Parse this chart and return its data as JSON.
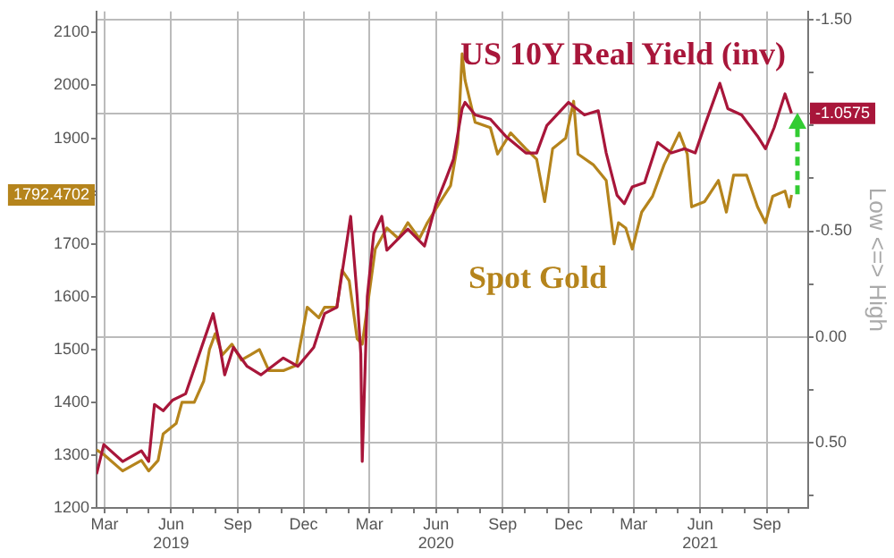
{
  "chart_data": {
    "type": "line",
    "series": [
      {
        "name": "US 10Y Real Yield (inv)",
        "color": "#a8163a",
        "axis": "y2",
        "x": [
          "2019-02-18",
          "2019-02-28",
          "2019-03-26",
          "2019-04-21",
          "2019-05-01",
          "2019-05-09",
          "2019-05-21",
          "2019-06-03",
          "2019-06-21",
          "2019-07-16",
          "2019-07-29",
          "2019-08-06",
          "2019-08-14",
          "2019-08-26",
          "2019-09-14",
          "2019-10-03",
          "2019-11-03",
          "2019-11-23",
          "2019-12-15",
          "2019-12-30",
          "2020-01-16",
          "2020-02-04",
          "2020-02-13",
          "2020-02-18",
          "2020-02-20",
          "2020-02-27",
          "2020-03-07",
          "2020-03-18",
          "2020-03-25",
          "2020-04-23",
          "2020-05-16",
          "2020-06-01",
          "2020-06-15",
          "2020-06-25",
          "2020-07-07",
          "2020-07-11",
          "2020-07-25",
          "2020-08-15",
          "2020-09-05",
          "2020-10-03",
          "2020-10-18",
          "2020-11-01",
          "2020-12-01",
          "2020-12-23",
          "2021-01-11",
          "2021-01-22",
          "2021-02-06",
          "2021-02-16",
          "2021-02-27",
          "2021-03-16",
          "2021-04-03",
          "2021-04-22",
          "2021-05-10",
          "2021-05-25",
          "2021-06-07",
          "2021-06-28",
          "2021-07-09",
          "2021-07-28",
          "2021-08-19",
          "2021-08-30",
          "2021-09-11",
          "2021-09-26",
          "2021-10-05"
        ],
        "values": [
          0.65,
          0.51,
          0.59,
          0.54,
          0.59,
          0.32,
          0.35,
          0.3,
          0.27,
          0.02,
          -0.11,
          0.02,
          0.18,
          0.05,
          0.14,
          0.18,
          0.1,
          0.14,
          0.05,
          -0.11,
          -0.14,
          -0.57,
          -0.19,
          0.08,
          0.59,
          -0.19,
          -0.49,
          -0.57,
          -0.41,
          -0.51,
          -0.43,
          -0.63,
          -0.75,
          -0.84,
          -1.08,
          -1.11,
          -1.05,
          -1.03,
          -0.95,
          -0.87,
          -0.87,
          -1.0,
          -1.11,
          -1.05,
          -1.07,
          -0.87,
          -0.67,
          -0.63,
          -0.71,
          -0.73,
          -0.92,
          -0.87,
          -0.89,
          -0.87,
          -1.0,
          -1.2,
          -1.08,
          -1.05,
          -0.95,
          -0.89,
          -0.99,
          -1.15,
          -1.0575
        ],
        "value_labels": [
          null,
          null,
          null,
          null,
          null,
          null,
          null,
          null,
          null,
          null,
          null,
          null,
          null,
          null,
          null,
          null,
          null,
          null,
          null,
          null,
          null,
          null,
          null,
          null,
          null,
          null,
          null,
          null,
          null,
          null,
          null,
          null,
          null,
          null,
          null,
          null,
          null,
          null,
          null,
          null,
          null,
          null,
          null,
          null,
          null,
          null,
          null,
          null,
          null,
          null,
          null,
          null,
          null,
          null,
          null,
          null,
          null,
          null,
          null,
          null,
          null,
          null,
          null
        ]
      },
      {
        "name": "Spot Gold",
        "color": "#b5841c",
        "axis": "y",
        "x": [
          "2019-02-18",
          "2019-03-01",
          "2019-03-26",
          "2019-04-21",
          "2019-05-01",
          "2019-05-14",
          "2019-05-21",
          "2019-06-08",
          "2019-06-16",
          "2019-07-03",
          "2019-07-16",
          "2019-07-24",
          "2019-08-01",
          "2019-08-11",
          "2019-08-24",
          "2019-09-06",
          "2019-09-19",
          "2019-10-01",
          "2019-10-14",
          "2019-11-03",
          "2019-11-21",
          "2019-12-06",
          "2019-12-22",
          "2019-12-30",
          "2020-01-16",
          "2020-01-23",
          "2020-02-02",
          "2020-02-13",
          "2020-02-20",
          "2020-03-03",
          "2020-03-09",
          "2020-03-25",
          "2020-04-10",
          "2020-04-23",
          "2020-05-09",
          "2020-05-20",
          "2020-06-07",
          "2020-06-21",
          "2020-07-01",
          "2020-07-07",
          "2020-07-11",
          "2020-07-25",
          "2020-08-15",
          "2020-08-25",
          "2020-09-12",
          "2020-10-03",
          "2020-10-18",
          "2020-10-29",
          "2020-11-09",
          "2020-11-27",
          "2020-12-08",
          "2020-12-14",
          "2021-01-04",
          "2021-01-22",
          "2021-02-02",
          "2021-02-08",
          "2021-02-18",
          "2021-02-27",
          "2021-03-12",
          "2021-03-27",
          "2021-04-12",
          "2021-05-03",
          "2021-05-14",
          "2021-05-20",
          "2021-06-07",
          "2021-06-26",
          "2021-07-07",
          "2021-07-17",
          "2021-08-04",
          "2021-08-19",
          "2021-08-30",
          "2021-09-09",
          "2021-09-26",
          "2021-10-02",
          "2021-10-05"
        ],
        "values": [
          1310,
          1300,
          1270,
          1290,
          1270,
          1290,
          1340,
          1360,
          1400,
          1400,
          1440,
          1500,
          1530,
          1490,
          1510,
          1480,
          1490,
          1500,
          1460,
          1460,
          1470,
          1580,
          1560,
          1580,
          1580,
          1650,
          1630,
          1520,
          1510,
          1630,
          1690,
          1730,
          1710,
          1740,
          1710,
          1740,
          1780,
          1810,
          1890,
          2060,
          2010,
          1930,
          1920,
          1870,
          1910,
          1880,
          1860,
          1780,
          1880,
          1900,
          1970,
          1870,
          1850,
          1820,
          1700,
          1740,
          1730,
          1690,
          1760,
          1790,
          1850,
          1910,
          1870,
          1770,
          1780,
          1820,
          1760,
          1830,
          1830,
          1770,
          1740,
          1790,
          1800,
          1770,
          1792.4702
        ],
        "value_labels": [
          null,
          null,
          null,
          null,
          null,
          null,
          null,
          null,
          null,
          null,
          null,
          null,
          null,
          null,
          null,
          null,
          null,
          null,
          null,
          null,
          null,
          null,
          null,
          null,
          null,
          null,
          null,
          null,
          null,
          null,
          null,
          null,
          null,
          null,
          null,
          null,
          null,
          null,
          null,
          null,
          null,
          null,
          null,
          null,
          null,
          null,
          null,
          null,
          null,
          null,
          null,
          null,
          null,
          null,
          null,
          null,
          null,
          null,
          null,
          null,
          null,
          null,
          null,
          null,
          null,
          null,
          null,
          null,
          null,
          null,
          null,
          null,
          null,
          null,
          null
        ]
      }
    ],
    "xlim": [
      "2019-02-18",
      "2021-10-28"
    ],
    "xticks": [
      {
        "value": "2019-03-01",
        "label": "Mar"
      },
      {
        "value": "2019-04-01",
        "label": null
      },
      {
        "value": "2019-05-01",
        "label": null
      },
      {
        "value": "2019-06-01",
        "label": "Jun\n2019"
      },
      {
        "value": "2019-07-01",
        "label": null
      },
      {
        "value": "2019-08-01",
        "label": null
      },
      {
        "value": "2019-09-01",
        "label": "Sep"
      },
      {
        "value": "2019-10-01",
        "label": null
      },
      {
        "value": "2019-11-01",
        "label": null
      },
      {
        "value": "2019-12-01",
        "label": "Dec"
      },
      {
        "value": "2020-01-01",
        "label": null
      },
      {
        "value": "2020-02-01",
        "label": null
      },
      {
        "value": "2020-03-01",
        "label": "Mar"
      },
      {
        "value": "2020-04-01",
        "label": null
      },
      {
        "value": "2020-05-01",
        "label": null
      },
      {
        "value": "2020-06-01",
        "label": "Jun\n2020"
      },
      {
        "value": "2020-07-01",
        "label": null
      },
      {
        "value": "2020-08-01",
        "label": null
      },
      {
        "value": "2020-09-01",
        "label": "Sep"
      },
      {
        "value": "2020-10-01",
        "label": null
      },
      {
        "value": "2020-11-01",
        "label": null
      },
      {
        "value": "2020-12-01",
        "label": "Dec"
      },
      {
        "value": "2021-01-01",
        "label": null
      },
      {
        "value": "2021-02-01",
        "label": null
      },
      {
        "value": "2021-03-01",
        "label": "Mar"
      },
      {
        "value": "2021-04-01",
        "label": null
      },
      {
        "value": "2021-05-01",
        "label": null
      },
      {
        "value": "2021-06-01",
        "label": "Jun\n2021"
      },
      {
        "value": "2021-07-01",
        "label": null
      },
      {
        "value": "2021-08-01",
        "label": null
      },
      {
        "value": "2021-09-01",
        "label": "Sep"
      },
      {
        "value": "2021-10-01",
        "label": null
      }
    ],
    "ylim": [
      1200,
      2140
    ],
    "yticks": [
      1200,
      1300,
      1400,
      1500,
      1600,
      1700,
      {
        "value": 1792.4702,
        "label": "1792.4702"
      },
      {
        "value": 1800,
        "label": null
      },
      1900,
      2000,
      2100
    ],
    "y2lim": [
      0.81,
      -1.54
    ],
    "y2ticks": [
      {
        "value": -1.5,
        "label": "-1.50"
      },
      {
        "value": -1.25,
        "label": null
      },
      {
        "value": -1.0575,
        "label": "-1.0575"
      },
      {
        "value": -1.0,
        "label": null
      },
      {
        "value": -0.75,
        "label": null
      },
      {
        "value": -0.5,
        "label": "-0.50"
      },
      {
        "value": -0.25,
        "label": null
      },
      {
        "value": 0,
        "label": "0.00"
      },
      {
        "value": 0.25,
        "label": null
      },
      {
        "value": 0.5,
        "label": "0.50"
      },
      {
        "value": 0.75,
        "label": null
      }
    ],
    "y2label": "Low <=> High",
    "grid": true,
    "legend": false,
    "marker": "none"
  }
}
